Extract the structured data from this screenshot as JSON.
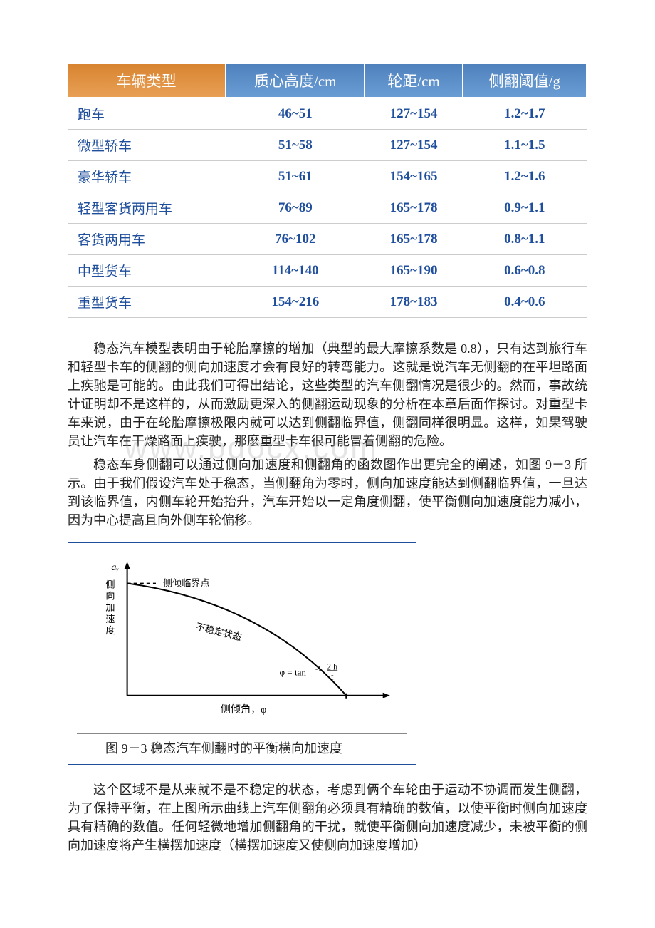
{
  "table": {
    "headers": [
      "车辆类型",
      "质心高度/cm",
      "轮距/cm",
      "侧翻阈值/g"
    ],
    "header_colors": {
      "first_bg_start": "#d88430",
      "first_bg_end": "#e8a055",
      "rest_bg_start": "#4f81bd",
      "rest_bg_end": "#6a9cd4",
      "text": "#ffffff"
    },
    "cell_text_color": "#1f4e9c",
    "border_color": "#cccccc",
    "rows": [
      [
        "跑车",
        "46~51",
        "127~154",
        "1.2~1.7"
      ],
      [
        "微型轿车",
        "51~58",
        "127~154",
        "1.1~1.5"
      ],
      [
        "豪华轿车",
        "51~61",
        "154~165",
        "1.2~1.6"
      ],
      [
        "轻型客货两用车",
        "76~89",
        "165~178",
        "0.9~1.1"
      ],
      [
        "客货两用车",
        "76~102",
        "165~178",
        "0.8~1.1"
      ],
      [
        "中型货车",
        "114~140",
        "165~190",
        "0.6~0.8"
      ],
      [
        "重型货车",
        "154~216",
        "178~183",
        "0.4~0.6"
      ]
    ]
  },
  "paragraphs": {
    "p1": "稳态汽车模型表明由于轮胎摩擦的增加（典型的最大摩擦系数是 0.8），只有达到旅行车和轻型卡车的侧翻的侧向加速度才会有良好的转弯能力。这就是说汽车无侧翻的在平坦路面上疾驰是可能的。由此我们可得出结论，这些类型的汽车侧翻情况是很少的。然而，事故统计证明却不是这样的，从而激励更深入的侧翻运动现象的分析在本章后面作探讨。对重型卡车来说，由于在轮胎摩擦极限内就可以达到侧翻临界值，侧翻同样很明显。这样，如果驾驶员让汽车在干燥路面上疾驶，那麽重型卡车很可能冒着侧翻的危险。",
    "p2": "稳态车身侧翻可以通过侧向加速度和侧翻角的函数图作出更完全的阐述，如图 9－3 所示。由于我们假设汽车处于稳态，当侧翻角为零时，侧向加速度能达到侧翻临界值，一旦达到该临界值，内侧车轮开始抬升，汽车开始以一定角度侧翻，使平衡侧向加速度能力减小，因为中心提高且向外侧车轮偏移。",
    "p3": "这个区域不是从来就不是不稳定的状态，考虑到俩个车轮由于运动不协调而发生侧翻，为了保持平衡，在上图所示曲线上汽车侧翻角必须具有精确的数值，以使平衡时侧向加速度具有精确的数值。任何轻微地增加侧翻角的干扰，就使平衡侧向加速度减少，未被平衡的侧向加速度将产生横摆加速度（横摆加速度又使侧向加速度增加）"
  },
  "watermark": "www.bdocx.com",
  "figure": {
    "caption": "图 9－3 稳态汽车侧翻时的平衡横向加速度",
    "y_axis_label": "侧向加速度",
    "y_axis_symbol": "aᵧ",
    "x_axis_label": "侧倾角，φ",
    "critical_point_label": "侧倾临界点",
    "curve_label": "不稳定状态",
    "formula": "φ = tan⁻¹(2h/t)",
    "dash_pattern": "5,4",
    "line_color": "#000000",
    "text_fontsize": 13,
    "background": "#ffffff"
  }
}
